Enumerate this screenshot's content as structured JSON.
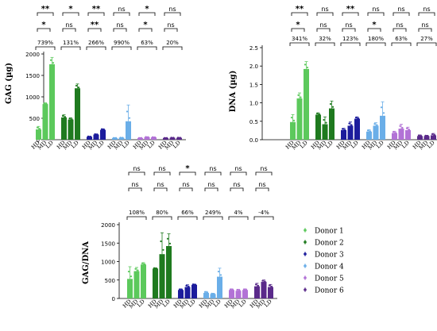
{
  "colors": {
    "Donor 1": "#5cc95c",
    "Donor 2": "#1f7a1f",
    "Donor 3": "#1c1c9c",
    "Donor 4": "#6aaee8",
    "Donor 5": "#b272d6",
    "Donor 6": "#5a2a8a"
  },
  "legend": {
    "items": [
      {
        "label": "Donor 1",
        "color": "#5cc95c"
      },
      {
        "label": "Donor 2",
        "color": "#1f7a1f"
      },
      {
        "label": "Donor 3",
        "color": "#1c1c9c"
      },
      {
        "label": "Donor 4",
        "color": "#6aaee8"
      },
      {
        "label": "Donor 5",
        "color": "#b272d6"
      },
      {
        "label": "Donor 6",
        "color": "#5a2a8a"
      }
    ]
  },
  "chart_data": [
    {
      "id": "gag",
      "type": "bar",
      "ylabel": "GAG (µg)",
      "ylim": [
        0,
        2000
      ],
      "yticks": [
        0,
        500,
        1000,
        1500,
        2000
      ],
      "categories": [
        "HD",
        "MD",
        "LD"
      ],
      "groups": [
        {
          "donor": "Donor 1",
          "values": [
            240,
            830,
            1760
          ],
          "errors": [
            70,
            30,
            160
          ],
          "pct": "739%",
          "sig_top": "**",
          "sig_bottom": "*"
        },
        {
          "donor": "Donor 2",
          "values": [
            520,
            470,
            1200
          ],
          "errors": [
            60,
            40,
            100
          ],
          "pct": "131%",
          "sig_top": "*",
          "sig_bottom": "ns"
        },
        {
          "donor": "Donor 3",
          "values": [
            70,
            120,
            230
          ],
          "errors": [
            10,
            15,
            25
          ],
          "pct": "266%",
          "sig_top": "**",
          "sig_bottom": "**"
        },
        {
          "donor": "Donor 4",
          "values": [
            40,
            45,
            430
          ],
          "errors": [
            5,
            5,
            380
          ],
          "pct": "990%",
          "sig_top": "ns",
          "sig_bottom": "ns"
        },
        {
          "donor": "Donor 5",
          "values": [
            40,
            60,
            55
          ],
          "errors": [
            5,
            8,
            8
          ],
          "pct": "63%",
          "sig_top": "*",
          "sig_bottom": "*"
        },
        {
          "donor": "Donor 6",
          "values": [
            40,
            45,
            45
          ],
          "errors": [
            5,
            5,
            5
          ],
          "pct": "20%",
          "sig_top": "ns",
          "sig_bottom": "ns"
        }
      ]
    },
    {
      "id": "dna",
      "type": "bar",
      "ylabel": "DNA (µg)",
      "ylim": [
        0,
        2.5
      ],
      "yticks": [
        0.0,
        0.5,
        1.0,
        1.5,
        2.0,
        2.5
      ],
      "categories": [
        "HD",
        "MD",
        "LD"
      ],
      "groups": [
        {
          "donor": "Donor 1",
          "values": [
            0.48,
            1.12,
            1.92
          ],
          "errors": [
            0.2,
            0.15,
            0.2
          ],
          "pct": "341%",
          "sig_top": "**",
          "sig_bottom": "*"
        },
        {
          "donor": "Donor 2",
          "values": [
            0.68,
            0.42,
            0.85
          ],
          "errors": [
            0.05,
            0.2,
            0.2
          ],
          "pct": "32%",
          "sig_top": "ns",
          "sig_bottom": "ns"
        },
        {
          "donor": "Donor 3",
          "values": [
            0.26,
            0.38,
            0.57
          ],
          "errors": [
            0.05,
            0.1,
            0.05
          ],
          "pct": "123%",
          "sig_top": "**",
          "sig_bottom": "ns"
        },
        {
          "donor": "Donor 4",
          "values": [
            0.22,
            0.38,
            0.65
          ],
          "errors": [
            0.05,
            0.08,
            0.38
          ],
          "pct": "180%",
          "sig_top": "ns",
          "sig_bottom": "*"
        },
        {
          "donor": "Donor 5",
          "values": [
            0.18,
            0.3,
            0.26
          ],
          "errors": [
            0.05,
            0.12,
            0.08
          ],
          "pct": "63%",
          "sig_top": "ns",
          "sig_bottom": "ns"
        },
        {
          "donor": "Donor 6",
          "values": [
            0.1,
            0.1,
            0.12
          ],
          "errors": [
            0.03,
            0.02,
            0.05
          ],
          "pct": "27%",
          "sig_top": "ns",
          "sig_bottom": "ns"
        }
      ]
    },
    {
      "id": "gagdna",
      "type": "bar",
      "ylabel": "GAG/DNA",
      "ylim": [
        0,
        2000
      ],
      "yticks": [
        0,
        500,
        1000,
        1500,
        2000
      ],
      "categories": [
        "HD",
        "MD",
        "LD"
      ],
      "groups": [
        {
          "donor": "Donor 1",
          "values": [
            530,
            740,
            920
          ],
          "errors": [
            330,
            100,
            50
          ],
          "pct": "108%",
          "sig_top": "ns",
          "sig_bottom": "ns"
        },
        {
          "donor": "Donor 2",
          "values": [
            810,
            1200,
            1420
          ],
          "errors": [
            20,
            580,
            330
          ],
          "pct": "80%",
          "sig_top": "ns",
          "sig_bottom": "ns"
        },
        {
          "donor": "Donor 3",
          "values": [
            230,
            310,
            370
          ],
          "errors": [
            30,
            60,
            20
          ],
          "pct": "66%",
          "sig_top": "*",
          "sig_bottom": "ns"
        },
        {
          "donor": "Donor 4",
          "values": [
            150,
            120,
            590
          ],
          "errors": [
            40,
            20,
            230
          ],
          "pct": "249%",
          "sig_top": "ns",
          "sig_bottom": "ns"
        },
        {
          "donor": "Donor 5",
          "values": [
            230,
            210,
            230
          ],
          "errors": [
            30,
            40,
            30
          ],
          "pct": "4%",
          "sig_top": "ns",
          "sig_bottom": "ns"
        },
        {
          "donor": "Donor 6",
          "values": [
            330,
            450,
            310
          ],
          "errors": [
            80,
            50,
            70
          ],
          "pct": "-4%",
          "sig_top": "ns",
          "sig_bottom": "ns"
        }
      ]
    }
  ]
}
